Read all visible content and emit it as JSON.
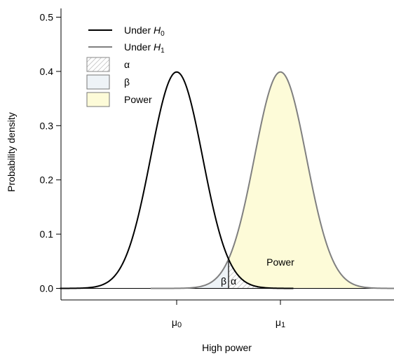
{
  "chart_data": {
    "type": "line",
    "title": "",
    "xlabel": "High power",
    "ylabel": "Probability density",
    "ylim": [
      0,
      0.5
    ],
    "xlim": [
      -4,
      8
    ],
    "yticks": [
      0.0,
      0.1,
      0.2,
      0.3,
      0.4,
      0.5
    ],
    "ytick_labels": [
      "0.0",
      "0.1",
      "0.2",
      "0.3",
      "0.4",
      "0.5"
    ],
    "xticks": [
      {
        "value": 0,
        "label_base": "μ",
        "label_sub": "0"
      },
      {
        "value": 4,
        "label_base": "μ",
        "label_sub": "1"
      }
    ],
    "critical_value": 2,
    "series": [
      {
        "name": "Under H0",
        "legend_base": "Under ",
        "legend_var": "H",
        "legend_sub": "0",
        "mean": 0,
        "sd": 1,
        "x_range": [
          -4.5,
          4.5
        ],
        "color": "#000000"
      },
      {
        "name": "Under H1",
        "legend_base": "Under ",
        "legend_var": "H",
        "legend_sub": "1",
        "mean": 4,
        "sd": 1,
        "x_range": [
          -1,
          10
        ],
        "color": "#808080"
      }
    ],
    "shaded_regions": [
      {
        "name": "α",
        "legend_label": "α",
        "label": "α",
        "fill": "hatch",
        "color": "#aaaaaa"
      },
      {
        "name": "β",
        "legend_label": "β",
        "label": "β",
        "fill": "#eef3f7",
        "color": "#7f7f7f"
      },
      {
        "name": "Power",
        "legend_label": "Power",
        "label": "Power",
        "fill": "#fdfbd8",
        "color": "#7f7f7f"
      }
    ],
    "legend_position": "top-left",
    "grid": false
  }
}
